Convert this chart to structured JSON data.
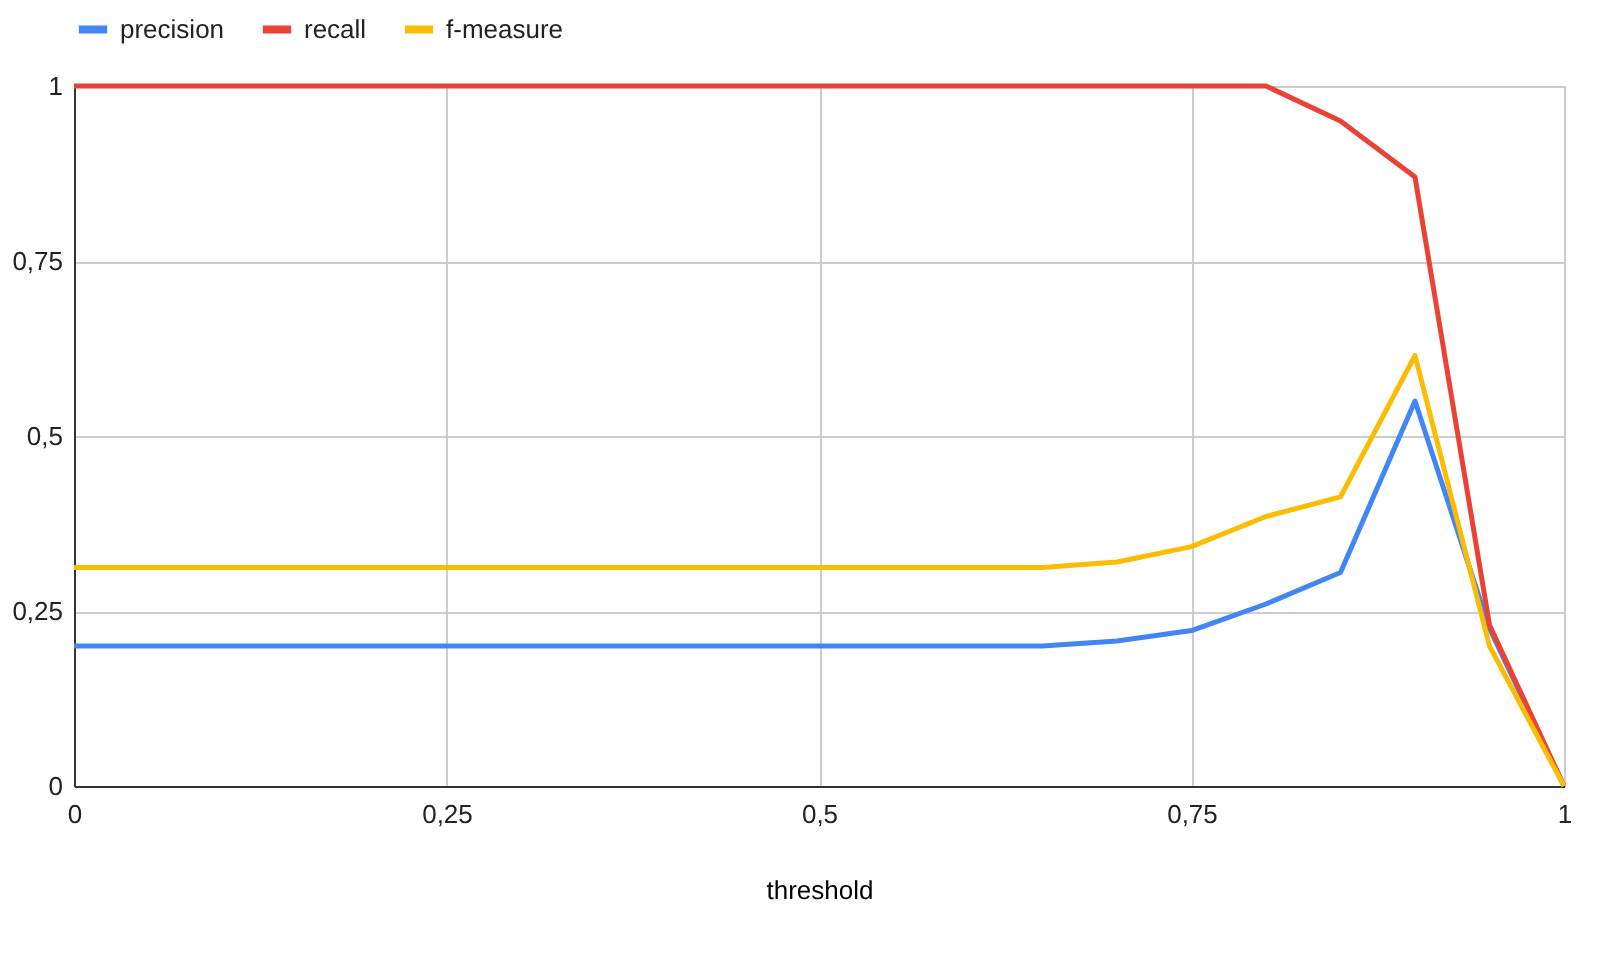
{
  "chart_data": {
    "type": "line",
    "xlabel": "threshold",
    "x": [
      0,
      0.65,
      0.7,
      0.75,
      0.8,
      0.85,
      0.9,
      0.95,
      1
    ],
    "series": [
      {
        "name": "precision",
        "color": "#4285f4",
        "values": [
          0.2,
          0.2,
          0.207,
          0.222,
          0.26,
          0.305,
          0.55,
          0.225,
          0
        ]
      },
      {
        "name": "recall",
        "color": "#ea4335",
        "values": [
          1,
          1,
          1,
          1,
          1,
          0.95,
          0.87,
          0.23,
          0
        ]
      },
      {
        "name": "f-measure",
        "color": "#fbbc04",
        "values": [
          0.312,
          0.312,
          0.32,
          0.342,
          0.385,
          0.413,
          0.615,
          0.2,
          0
        ]
      }
    ],
    "xlim": [
      0,
      1
    ],
    "ylim": [
      0,
      1
    ],
    "xticks": [
      0,
      {
        "value": 0.25,
        "label": "0,25"
      },
      {
        "value": 0.5,
        "label": "0,5"
      },
      {
        "value": 0.75,
        "label": "0,75"
      },
      1
    ],
    "yticks": [
      0,
      {
        "value": 0.25,
        "label": "0,25"
      },
      {
        "value": 0.5,
        "label": "0,5"
      },
      {
        "value": 0.75,
        "label": "0,75"
      },
      1
    ],
    "grid": true,
    "legend": "top",
    "marker": "none",
    "line_style": "solid"
  }
}
